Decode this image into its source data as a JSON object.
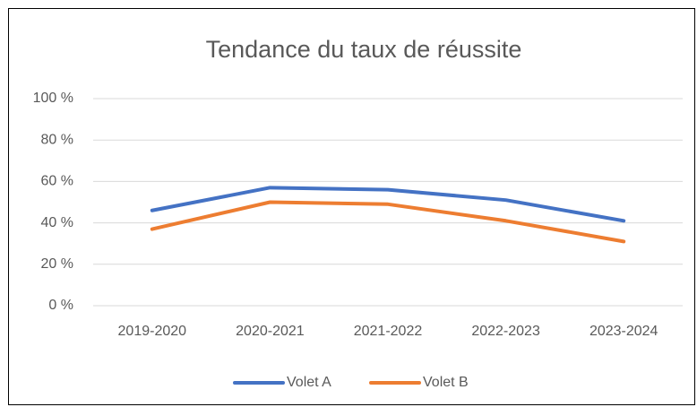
{
  "chart_data": {
    "type": "line",
    "title": "Tendance du taux de réussite",
    "categories": [
      "2019-2020",
      "2020-2021",
      "2021-2022",
      "2022-2023",
      "2023-2024"
    ],
    "series": [
      {
        "name": "Volet A",
        "color": "#4472c4",
        "values": [
          46,
          57,
          56,
          51,
          41
        ]
      },
      {
        "name": "Volet B",
        "color": "#ed7d31",
        "values": [
          37,
          50,
          49,
          41,
          31
        ]
      }
    ],
    "ylim": [
      0,
      100
    ],
    "yticks": [
      {
        "value": 0,
        "label": "0 %"
      },
      {
        "value": 20,
        "label": "20 %"
      },
      {
        "value": 40,
        "label": "40 %"
      },
      {
        "value": 60,
        "label": "60 %"
      },
      {
        "value": 80,
        "label": "80 %"
      },
      {
        "value": 100,
        "label": "100 %"
      }
    ],
    "grid": true,
    "legend": "bottom"
  }
}
